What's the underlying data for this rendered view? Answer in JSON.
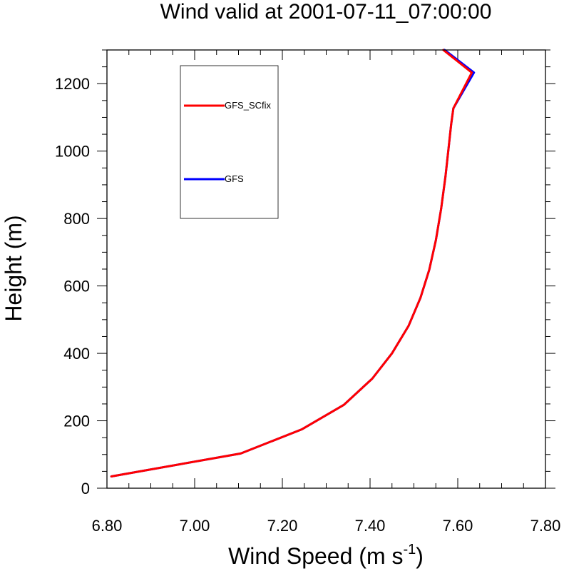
{
  "chart_data": {
    "type": "line",
    "title": "Wind valid at 2001-07-11_07:00:00",
    "xlabel": "Wind Speed (m s",
    "xlabel_sup": "-1",
    "xlabel_end": ")",
    "ylabel": "Height (m)",
    "xlim": [
      6.8,
      7.8
    ],
    "ylim": [
      0,
      1300
    ],
    "x_ticks": [
      6.8,
      7.0,
      7.2,
      7.4,
      7.6,
      7.8
    ],
    "x_tick_labels": [
      "6.80",
      "7.00",
      "7.20",
      "7.40",
      "7.60",
      "7.80"
    ],
    "y_ticks": [
      0,
      200,
      400,
      600,
      800,
      1000,
      1200
    ],
    "y_tick_labels": [
      "0",
      "200",
      "400",
      "600",
      "800",
      "1000",
      "1200"
    ],
    "grid": false,
    "legend_placement": "top-left",
    "series": [
      {
        "name": "GFS_SCfix",
        "color": "#ff0000",
        "x": [
          6.81,
          7.105,
          7.245,
          7.34,
          7.405,
          7.45,
          7.488,
          7.515,
          7.535,
          7.55,
          7.562,
          7.572,
          7.58,
          7.585,
          7.59,
          7.632,
          7.567
        ],
        "y": [
          35,
          103,
          175,
          247,
          325,
          400,
          482,
          565,
          648,
          735,
          828,
          925,
          1020,
          1080,
          1127,
          1233,
          1300
        ]
      },
      {
        "name": "GFS",
        "color": "#0000ff",
        "x": [
          6.81,
          7.105,
          7.245,
          7.34,
          7.405,
          7.45,
          7.488,
          7.515,
          7.535,
          7.55,
          7.562,
          7.572,
          7.58,
          7.585,
          7.59,
          7.637,
          7.57
        ],
        "y": [
          35,
          103,
          175,
          247,
          325,
          400,
          482,
          565,
          648,
          735,
          828,
          925,
          1020,
          1080,
          1127,
          1233,
          1300
        ]
      }
    ]
  }
}
